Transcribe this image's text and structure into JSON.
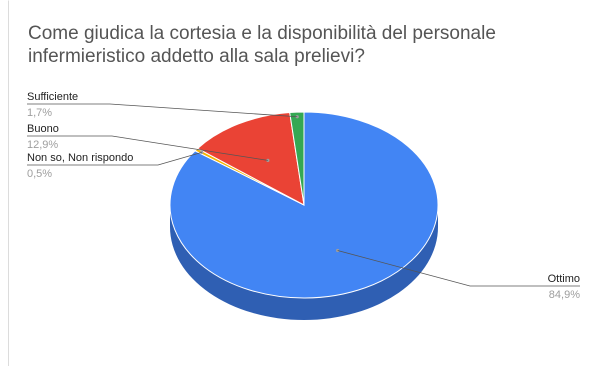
{
  "chart_data": {
    "type": "pie",
    "title": "Come giudica la cortesia e la disponibilità del personale infermieristico addetto alla sala prelievi?",
    "three_d": true,
    "legend": "labeled",
    "slices": [
      {
        "label": "Ottimo",
        "value": 84.9,
        "value_label": "84,9%",
        "color": "#4285f4",
        "side_color": "#2f5fb3"
      },
      {
        "label": "Non so, Non rispondo",
        "value": 0.5,
        "value_label": "0,5%",
        "color": "#f4b400",
        "side_color": "#b88700"
      },
      {
        "label": "Buono",
        "value": 12.9,
        "value_label": "12,9%",
        "color": "#ea4335",
        "side_color": "#a8301f"
      },
      {
        "label": "Sufficiente",
        "value": 1.7,
        "value_label": "1,7%",
        "color": "#34a853",
        "side_color": "#24773a"
      }
    ]
  }
}
